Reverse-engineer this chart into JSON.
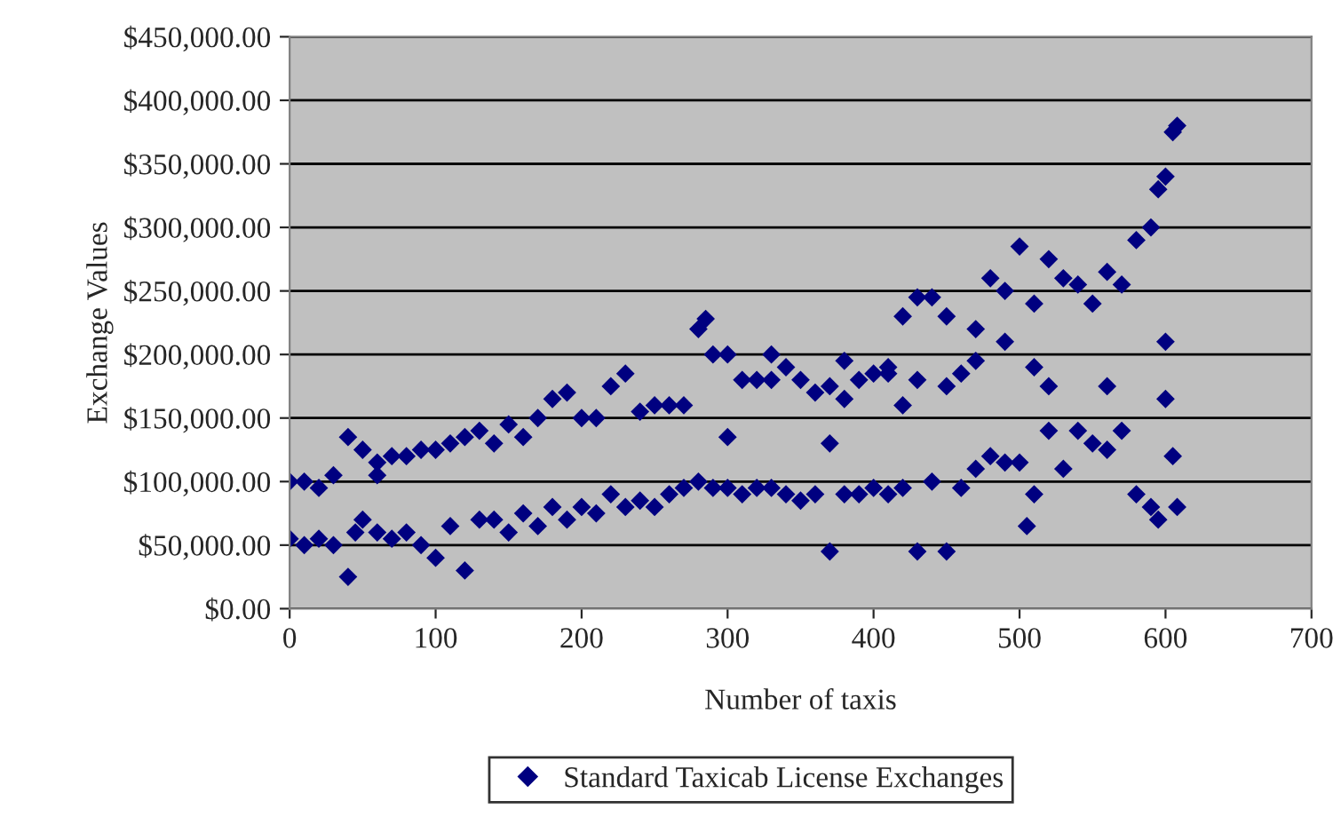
{
  "chart_data": {
    "type": "scatter",
    "xlabel": "Number of taxis",
    "ylabel": "Exchange Values",
    "xlim": [
      0,
      700
    ],
    "xticks": [
      0,
      100,
      200,
      300,
      400,
      500,
      600,
      700
    ],
    "ylim": [
      0,
      450000
    ],
    "yticks": [
      {
        "value": 0,
        "label": "$0.00"
      },
      {
        "value": 50000,
        "label": "$50,000.00"
      },
      {
        "value": 100000,
        "label": "$100,000.00"
      },
      {
        "value": 150000,
        "label": "$150,000.00"
      },
      {
        "value": 200000,
        "label": "$200,000.00"
      },
      {
        "value": 250000,
        "label": "$250,000.00"
      },
      {
        "value": 300000,
        "label": "$300,000.00"
      },
      {
        "value": 350000,
        "label": "$350,000.00"
      },
      {
        "value": 400000,
        "label": "$400,000.00"
      },
      {
        "value": 450000,
        "label": "$450,000.00"
      }
    ],
    "grid": "y",
    "legend": "bottom",
    "marker": "diamond",
    "series": [
      {
        "name": "Standard Taxicab License Exchanges",
        "color": "#000080",
        "x": [
          0,
          10,
          20,
          30,
          40,
          50,
          60,
          70,
          80,
          90,
          100,
          110,
          120,
          130,
          140,
          150,
          160,
          170,
          180,
          190,
          200,
          210,
          220,
          230,
          240,
          250,
          260,
          270,
          280,
          285,
          290,
          300,
          310,
          320,
          330,
          340,
          350,
          360,
          370,
          380,
          390,
          400,
          410,
          420,
          430,
          440,
          450,
          460,
          470,
          480,
          490,
          500,
          510,
          520,
          530,
          540,
          550,
          560,
          570,
          580,
          590,
          595,
          600,
          605,
          608,
          330,
          380,
          410,
          430,
          450,
          470,
          490,
          510,
          0,
          10,
          20,
          30,
          40,
          45,
          50,
          60,
          70,
          80,
          90,
          100,
          110,
          120,
          130,
          140,
          150,
          160,
          170,
          180,
          190,
          200,
          210,
          220,
          230,
          240,
          250,
          260,
          270,
          280,
          290,
          300,
          310,
          320,
          330,
          340,
          350,
          360,
          370,
          380,
          390,
          400,
          410,
          420,
          430,
          440,
          450,
          460,
          470,
          480,
          490,
          500,
          505,
          510,
          520,
          530,
          540,
          550,
          560,
          570,
          580,
          590,
          595,
          600,
          605,
          608,
          60,
          300,
          370,
          420,
          520,
          560,
          600
        ],
        "values": [
          100000,
          100000,
          95000,
          105000,
          135000,
          125000,
          115000,
          120000,
          120000,
          125000,
          125000,
          130000,
          135000,
          140000,
          130000,
          145000,
          135000,
          150000,
          165000,
          170000,
          150000,
          150000,
          175000,
          185000,
          155000,
          160000,
          160000,
          160000,
          220000,
          228000,
          200000,
          200000,
          180000,
          180000,
          180000,
          190000,
          180000,
          170000,
          175000,
          165000,
          180000,
          185000,
          190000,
          230000,
          245000,
          245000,
          230000,
          185000,
          220000,
          260000,
          250000,
          285000,
          240000,
          275000,
          260000,
          255000,
          240000,
          265000,
          255000,
          290000,
          300000,
          330000,
          340000,
          375000,
          380000,
          200000,
          195000,
          185000,
          180000,
          175000,
          195000,
          210000,
          190000,
          55000,
          50000,
          55000,
          50000,
          25000,
          60000,
          70000,
          60000,
          55000,
          60000,
          50000,
          40000,
          65000,
          30000,
          70000,
          70000,
          60000,
          75000,
          65000,
          80000,
          70000,
          80000,
          75000,
          90000,
          80000,
          85000,
          80000,
          90000,
          95000,
          100000,
          95000,
          95000,
          90000,
          95000,
          95000,
          90000,
          85000,
          90000,
          45000,
          90000,
          90000,
          95000,
          90000,
          95000,
          45000,
          100000,
          45000,
          95000,
          110000,
          120000,
          115000,
          115000,
          65000,
          90000,
          140000,
          110000,
          140000,
          130000,
          125000,
          140000,
          90000,
          80000,
          70000,
          165000,
          120000,
          80000,
          105000,
          135000,
          130000,
          160000,
          175000,
          175000,
          210000
        ]
      }
    ]
  }
}
